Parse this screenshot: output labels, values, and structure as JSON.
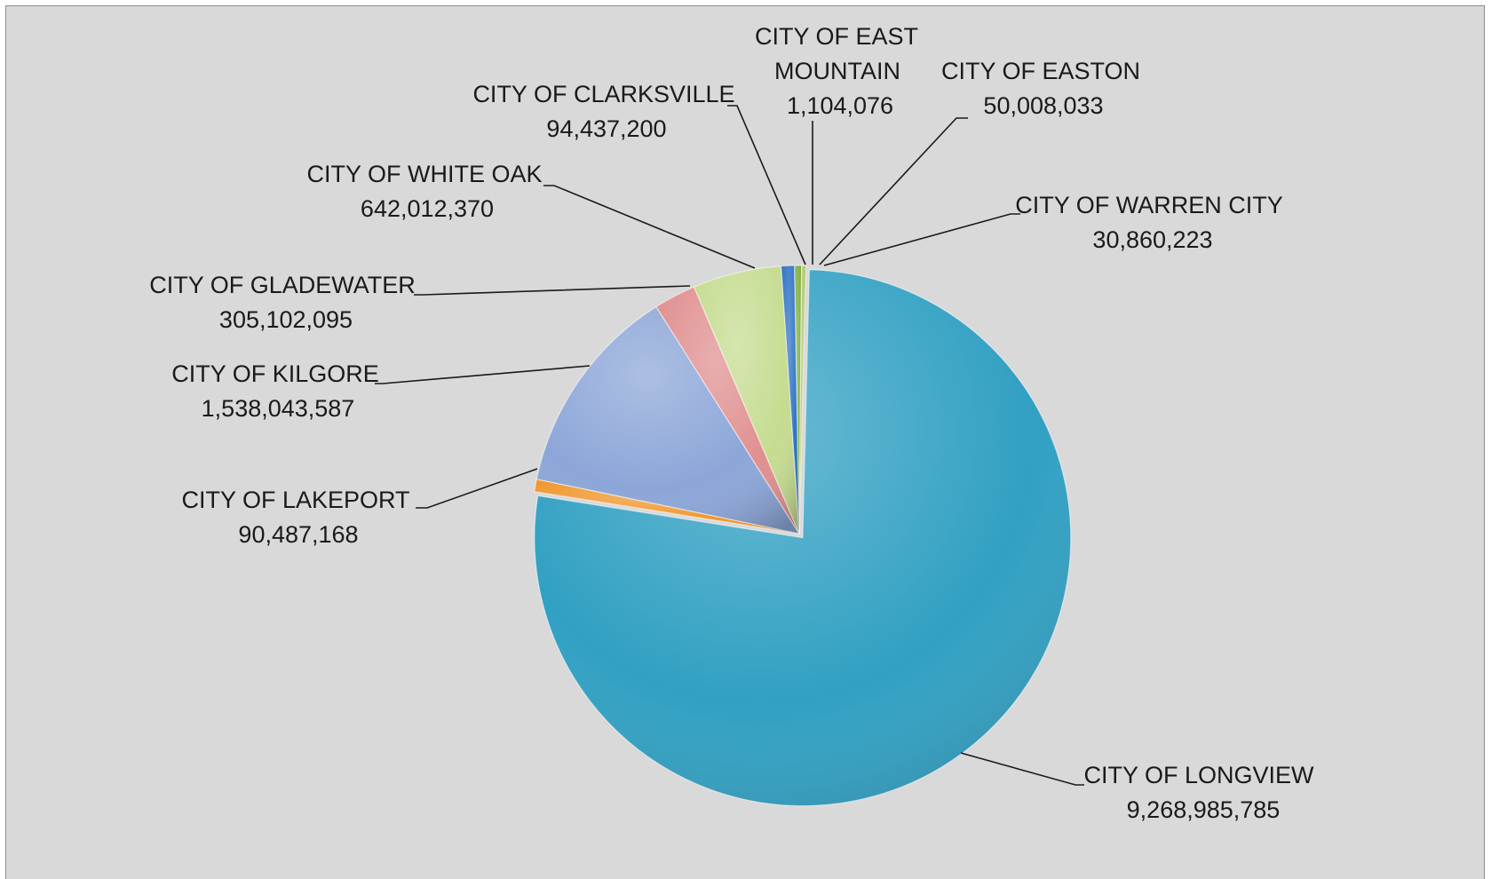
{
  "chart_data": {
    "type": "pie",
    "title": "",
    "legend": "none",
    "slices": [
      {
        "name": "CITY OF LONGVIEW",
        "value": 9268985785,
        "value_label": "9,268,985,785",
        "color": "#31a0c3"
      },
      {
        "name": "CITY OF LAKEPORT",
        "value": 90487168,
        "value_label": "90,487,168",
        "color": "#f0962c"
      },
      {
        "name": "CITY OF KILGORE",
        "value": 1538043587,
        "value_label": "1,538,043,587",
        "color": "#8ca6d8"
      },
      {
        "name": "CITY OF GLADEWATER",
        "value": 305102095,
        "value_label": "305,102,095",
        "color": "#e08f8f"
      },
      {
        "name": "CITY OF WHITE OAK",
        "value": 642012370,
        "value_label": "642,012,370",
        "color": "#c5dc90"
      },
      {
        "name": "CITY OF CLARKSVILLE",
        "value": 94437200,
        "value_label": "94,437,200",
        "color": "#2e72c4"
      },
      {
        "name": "CITY OF EAST MOUNTAIN",
        "value": 1104076,
        "value_label": "1,104,076",
        "color": "#e06c2a"
      },
      {
        "name": "CITY OF EASTON",
        "value": 50008033,
        "value_label": "50,008,033",
        "color": "#7fae3e"
      },
      {
        "name": "CITY OF WARREN CITY",
        "value": 30860223,
        "value_label": "30,860,223",
        "color": "#b0c86a"
      }
    ],
    "order_clockwise_from_top": [
      "CITY OF EAST MOUNTAIN",
      "CITY OF EASTON",
      "CITY OF WARREN CITY",
      "CITY OF LONGVIEW",
      "CITY OF LAKEPORT",
      "CITY OF KILGORE",
      "CITY OF GLADEWATER",
      "CITY OF WHITE OAK",
      "CITY OF CLARKSVILLE"
    ]
  },
  "labels": {
    "longview": {
      "line1": "CITY OF LONGVIEW",
      "line2": "9,268,985,785"
    },
    "lakeport": {
      "line1": "CITY OF LAKEPORT",
      "line2": "90,487,168"
    },
    "kilgore": {
      "line1": "CITY OF KILGORE",
      "line2": "1,538,043,587"
    },
    "gladewater": {
      "line1": "CITY OF GLADEWATER",
      "line2": "305,102,095"
    },
    "whiteoak": {
      "line1": "CITY OF WHITE OAK",
      "line2": "642,012,370"
    },
    "clarksville": {
      "line1": "CITY OF CLARKSVILLE",
      "line2": "94,437,200"
    },
    "eastmountain": {
      "line1": "CITY OF EAST",
      "line2": "MOUNTAIN",
      "line3": "1,104,076"
    },
    "easton": {
      "line1": "CITY OF EASTON",
      "line2": "50,008,033"
    },
    "warren": {
      "line1": "CITY OF WARREN CITY",
      "line2": "30,860,223"
    }
  }
}
